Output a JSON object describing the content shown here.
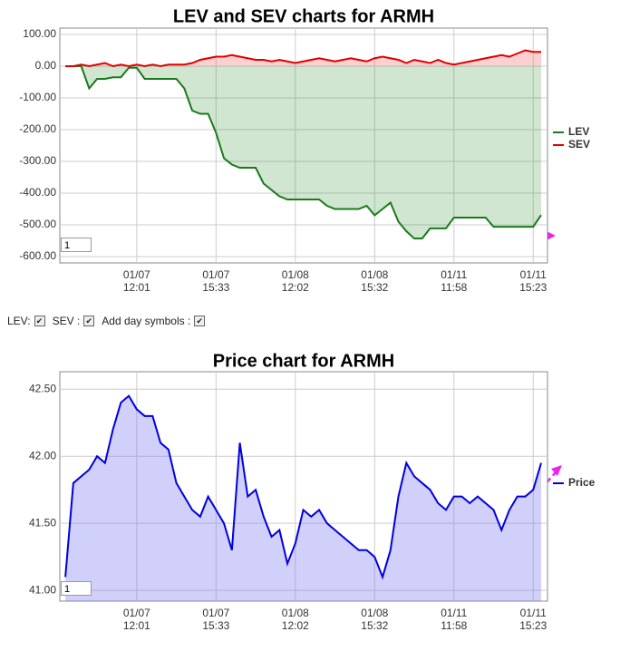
{
  "chart_data": [
    {
      "type": "line",
      "title": "LEV and SEV charts for ARMH",
      "input": "1",
      "x": [
        1,
        2,
        3,
        4,
        5,
        6,
        7,
        8,
        9,
        10,
        11,
        12,
        13,
        14,
        15,
        16,
        17,
        18,
        19,
        20,
        21,
        22,
        23,
        24,
        25,
        26,
        27,
        28,
        29,
        30,
        31,
        32,
        33,
        34,
        35,
        36,
        37,
        38,
        39,
        40,
        41,
        42,
        43,
        44,
        45,
        46,
        47,
        48,
        49,
        50,
        51,
        52,
        53,
        54,
        55,
        56,
        57,
        58,
        59,
        60,
        61
      ],
      "series": [
        {
          "name": "LEV",
          "color": "#1a7a1a",
          "fill": "rgba(40,140,40,0.22)",
          "values": [
            0,
            0,
            0,
            -70,
            -40,
            -40,
            -35,
            -35,
            -5,
            -5,
            -40,
            -40,
            -40,
            -40,
            -40,
            -70,
            -140,
            -150,
            -150,
            -210,
            -290,
            -310,
            -320,
            -320,
            -320,
            -370,
            -390,
            -410,
            -420,
            -420,
            -420,
            -420,
            -420,
            -440,
            -450,
            -450,
            -450,
            -450,
            -440,
            -470,
            -450,
            -430,
            -490,
            -520,
            -543,
            -543,
            -511,
            -511,
            -511,
            -477,
            -477,
            -477,
            -477,
            -477,
            -506,
            -506,
            -506,
            -506,
            -506,
            -506,
            -469
          ]
        },
        {
          "name": "SEV",
          "color": "#e00000",
          "fill": "rgba(240,100,100,0.3)",
          "values": [
            0,
            0,
            5,
            0,
            5,
            10,
            0,
            5,
            0,
            5,
            0,
            5,
            0,
            5,
            5,
            5,
            10,
            20,
            25,
            30,
            30,
            35,
            30,
            25,
            20,
            20,
            15,
            20,
            15,
            10,
            15,
            20,
            25,
            20,
            15,
            20,
            25,
            20,
            15,
            25,
            30,
            25,
            20,
            10,
            20,
            15,
            10,
            20,
            10,
            5,
            10,
            15,
            20,
            25,
            30,
            35,
            30,
            40,
            50,
            45,
            45
          ]
        }
      ],
      "xlim": [
        0.3,
        61.8
      ],
      "xticks": [
        {
          "value": 10,
          "label": "01/07"
        },
        {
          "value": 20,
          "label": "01/07"
        },
        {
          "value": 30,
          "label": "01/08"
        },
        {
          "value": 40,
          "label": "01/08"
        },
        {
          "value": 50,
          "label": "01/11"
        },
        {
          "value": 60,
          "label": "01/11"
        }
      ],
      "xtick_times": [
        "12:01",
        "15:33",
        "12:02",
        "15:32",
        "11:58",
        "15:23"
      ],
      "ylim": [
        -620,
        120
      ],
      "yticks": [
        {
          "value": -600,
          "label": "-600.00"
        },
        {
          "value": -500,
          "label": "-500.00"
        },
        {
          "value": -400,
          "label": "-400.00"
        },
        {
          "value": -300,
          "label": "-300.00"
        },
        {
          "value": -200,
          "label": "-200.00"
        },
        {
          "value": -100,
          "label": "-100.00"
        },
        {
          "value": 0,
          "label": "0.00"
        },
        {
          "value": 100,
          "label": "100.00"
        }
      ],
      "grid": true
    },
    {
      "type": "line",
      "title": "Price chart for ARMH",
      "input": "1",
      "x": [
        1,
        2,
        3,
        4,
        5,
        6,
        7,
        8,
        9,
        10,
        11,
        12,
        13,
        14,
        15,
        16,
        17,
        18,
        19,
        20,
        21,
        22,
        23,
        24,
        25,
        26,
        27,
        28,
        29,
        30,
        31,
        32,
        33,
        34,
        35,
        36,
        37,
        38,
        39,
        40,
        41,
        42,
        43,
        44,
        45,
        46,
        47,
        48,
        49,
        50,
        51,
        52,
        53,
        54,
        55,
        56,
        57,
        58,
        59,
        60,
        61
      ],
      "series": [
        {
          "name": "Price",
          "color": "#0000dd",
          "fill": "rgba(120,120,240,0.35)",
          "values": [
            41.1,
            41.8,
            41.85,
            41.9,
            42.0,
            41.95,
            42.2,
            42.4,
            42.45,
            42.35,
            42.3,
            42.3,
            42.1,
            42.05,
            41.8,
            41.7,
            41.6,
            41.55,
            41.7,
            41.6,
            41.5,
            41.3,
            42.1,
            41.7,
            41.75,
            41.55,
            41.4,
            41.45,
            41.2,
            41.35,
            41.6,
            41.55,
            41.6,
            41.5,
            41.45,
            41.4,
            41.35,
            41.3,
            41.3,
            41.25,
            41.1,
            41.3,
            41.7,
            41.95,
            41.85,
            41.8,
            41.75,
            41.65,
            41.6,
            41.7,
            41.7,
            41.65,
            41.7,
            41.65,
            41.6,
            41.45,
            41.6,
            41.7,
            41.7,
            41.75,
            41.95
          ]
        }
      ],
      "xlim": [
        0.3,
        61.8
      ],
      "xticks": [
        {
          "value": 10,
          "label": "01/07"
        },
        {
          "value": 20,
          "label": "01/07"
        },
        {
          "value": 30,
          "label": "01/08"
        },
        {
          "value": 40,
          "label": "01/08"
        },
        {
          "value": 50,
          "label": "01/11"
        },
        {
          "value": 60,
          "label": "01/11"
        }
      ],
      "xtick_times": [
        "12:01",
        "15:33",
        "12:02",
        "15:32",
        "11:58",
        "15:23"
      ],
      "ylim": [
        40.92,
        42.63
      ],
      "yticks": [
        {
          "value": 41,
          "label": "41.00"
        },
        {
          "value": 41.5,
          "label": "41.50"
        },
        {
          "value": 42,
          "label": "42.00"
        },
        {
          "value": 42.5,
          "label": "42.50"
        }
      ],
      "grid": true
    }
  ],
  "controls": [
    "LEV:",
    "SEV :",
    "Add day symbols :"
  ]
}
